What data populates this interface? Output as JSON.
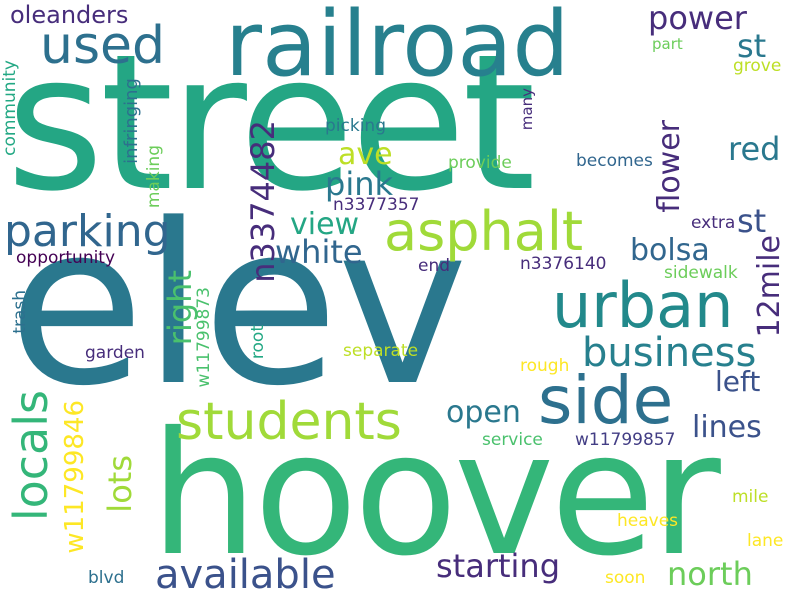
{
  "words": {
    "street": "street",
    "elev": "elev",
    "hoover": "hoover",
    "railroad": "railroad",
    "side": "side",
    "urban": "urban",
    "asphalt": "asphalt",
    "students": "students",
    "used": "used",
    "parking": "parking",
    "locals": "locals",
    "available": "available",
    "business": "business",
    "n3374482": "n3374482",
    "lots": "lots",
    "w11799846": "w11799846",
    "starting": "starting",
    "north": "north",
    "power": "power",
    "st": "st",
    "st2": "st",
    "flower": "flower",
    "red": "red",
    "twelve_mile": "12mile",
    "pink": "pink",
    "ave": "ave",
    "view": "view",
    "white": "white",
    "bolsa": "bolsa",
    "right": "right",
    "open": "open",
    "lines": "lines",
    "left": "left",
    "oleanders": "oleanders",
    "community": "community",
    "infringing": "infringing",
    "making": "making",
    "opportunity": "opportunity",
    "trash": "trash",
    "garden": "garden",
    "root": "root",
    "w11799873": "w11799873",
    "separate": "separate",
    "rough": "rough",
    "end": "end",
    "n3376140": "n3376140",
    "sidewalk": "sidewalk",
    "n3377357": "n3377357",
    "picking": "picking",
    "provide": "provide",
    "becomes": "becomes",
    "many": "many",
    "extra": "extra",
    "part": "part",
    "grove": "grove",
    "service": "service",
    "w11799857": "w11799857",
    "mile": "mile",
    "heaves": "heaves",
    "lane": "lane",
    "blvd": "blvd",
    "soon": "soon"
  }
}
